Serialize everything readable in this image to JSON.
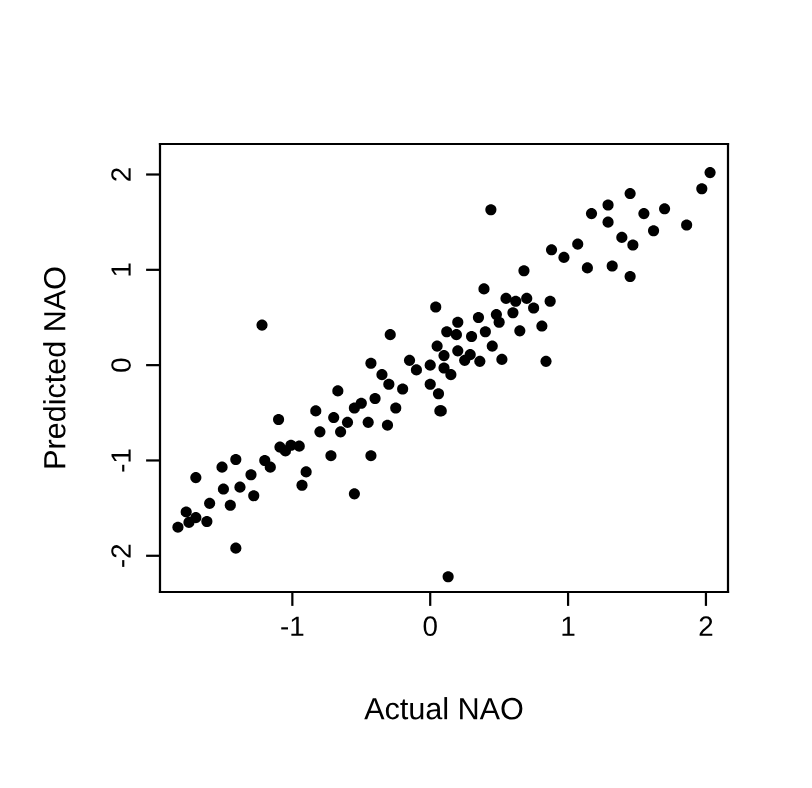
{
  "chart_data": {
    "type": "scatter",
    "xlabel": "Actual NAO",
    "ylabel": "Predicted NAO",
    "xlim": [
      -1.96,
      2.16
    ],
    "ylim": [
      -2.38,
      2.32
    ],
    "xticks": [
      -1,
      0,
      1,
      2
    ],
    "yticks": [
      -2,
      -1,
      0,
      1,
      2
    ],
    "grid": false,
    "marker": "circle",
    "series": [
      {
        "color": "#000000",
        "x": [
          -1.22,
          0.44,
          0.13,
          -1.41,
          2.03,
          1.97,
          -1.83,
          -1.77,
          -1.7,
          -1.51,
          -1.41,
          -1.28,
          -1.45,
          -1.1,
          -1.09,
          -0.93,
          -0.9,
          -0.83,
          -0.67,
          -0.55,
          -0.43,
          -0.31,
          -0.43,
          -0.29,
          0.04,
          0.08,
          -0.72,
          -1.62,
          -1.38,
          -1.01,
          -1.16,
          0.07,
          0.06,
          0.52,
          0.84,
          0.81,
          0.88,
          1.07,
          1.17,
          1.29,
          1.29,
          1.45,
          1.39,
          1.47,
          1.32,
          1.45,
          1.55,
          1.62,
          1.7,
          1.86,
          1.14,
          0.97,
          0.68,
          0.39,
          0.62,
          0.87,
          0.65,
          0.29,
          0.36,
          0.19,
          0.1,
          0.48,
          -0.8,
          -0.7,
          -0.6,
          -0.5,
          -0.4,
          -0.3,
          -0.2,
          -0.1,
          0.0,
          0.1,
          0.2,
          0.3,
          0.4,
          0.5,
          0.6,
          0.7,
          -0.35,
          -0.15,
          0.05,
          0.15,
          0.25,
          0.45,
          -0.55,
          -0.65,
          -0.95,
          -1.05,
          -1.2,
          -1.3,
          -1.5,
          -1.6,
          -1.7,
          -1.75,
          0.55,
          0.75,
          0.35,
          -0.25,
          -0.45,
          0.0,
          0.12,
          0.2
        ],
        "values": [
          0.42,
          1.63,
          -2.22,
          -1.92,
          2.02,
          1.85,
          -1.7,
          -1.54,
          -1.18,
          -1.07,
          -0.99,
          -1.37,
          -1.47,
          -0.57,
          -0.86,
          -1.26,
          -1.12,
          -0.48,
          -0.27,
          -1.35,
          -0.95,
          -0.63,
          0.02,
          0.32,
          0.61,
          -0.48,
          -0.95,
          -1.64,
          -1.28,
          -0.84,
          -1.07,
          -0.48,
          -0.3,
          0.06,
          0.04,
          0.41,
          1.21,
          1.27,
          1.59,
          1.68,
          1.5,
          1.8,
          1.34,
          1.26,
          1.04,
          0.93,
          1.59,
          1.41,
          1.64,
          1.47,
          1.02,
          1.13,
          0.99,
          0.8,
          0.67,
          0.67,
          0.36,
          0.11,
          0.04,
          0.32,
          -0.03,
          0.53,
          -0.7,
          -0.55,
          -0.6,
          -0.4,
          -0.35,
          -0.2,
          -0.25,
          -0.05,
          0.0,
          0.1,
          0.15,
          0.3,
          0.35,
          0.45,
          0.55,
          0.7,
          -0.1,
          0.05,
          0.2,
          -0.1,
          0.05,
          0.2,
          -0.45,
          -0.7,
          -0.85,
          -0.9,
          -1.0,
          -1.15,
          -1.3,
          -1.45,
          -1.6,
          -1.65,
          0.7,
          0.6,
          0.5,
          -0.45,
          -0.6,
          -0.2,
          0.35,
          0.45
        ]
      }
    ]
  }
}
